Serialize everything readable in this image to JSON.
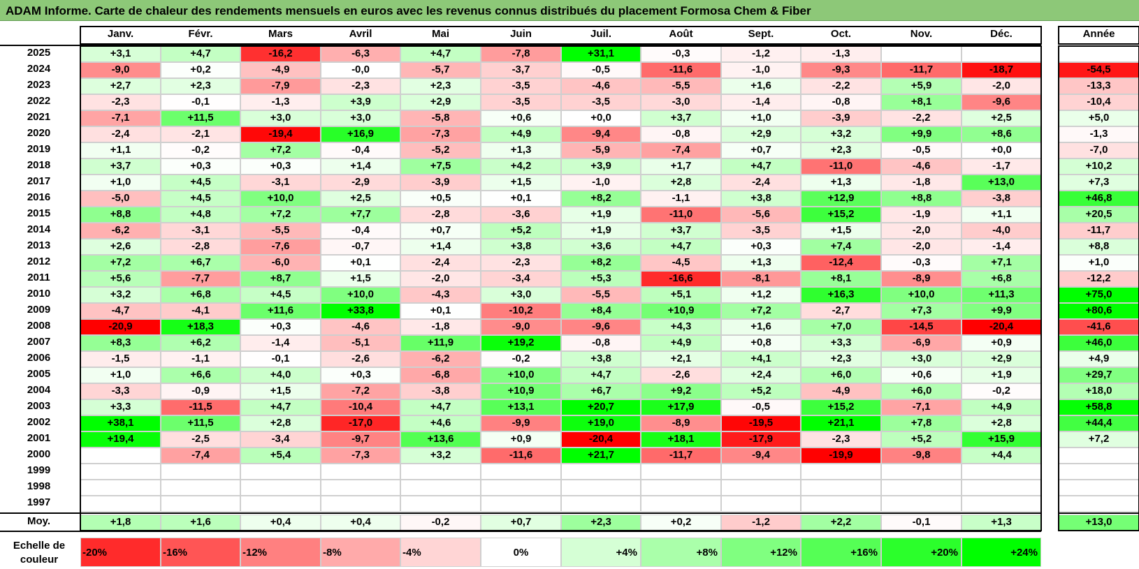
{
  "title": "ADAM Informe. Carte de chaleur des rendements mensuels en euros avec les revenus connus distribués du placement Formosa Chem & Fiber",
  "colors": {
    "title_bg": "#8dc878",
    "negative_max": "#ff0000",
    "positive_max": "#00ff00",
    "neutral": "#ffffff"
  },
  "chart_data": {
    "type": "heatmap",
    "title": "ADAM Informe. Carte de chaleur des rendements mensuels en euros avec les revenus connus distribués du placement Formosa Chem & Fiber",
    "month_headers": [
      "Janv.",
      "Févr.",
      "Mars",
      "Avril",
      "Mai",
      "Juin",
      "Juil.",
      "Août",
      "Sept.",
      "Oct.",
      "Nov.",
      "Déc."
    ],
    "year_header": "Année",
    "rows": [
      {
        "year": "2025",
        "months": [
          "+3,1",
          "+4,7",
          "-16,2",
          "-6,3",
          "+4,7",
          "-7,8",
          "+31,1",
          "-0,3",
          "-1,2",
          "-1,3",
          "",
          ""
        ],
        "annual": ""
      },
      {
        "year": "2024",
        "months": [
          "-9,0",
          "+0,2",
          "-4,9",
          "-0,0",
          "-5,7",
          "-3,7",
          "-0,5",
          "-11,6",
          "-1,0",
          "-9,3",
          "-11,7",
          "-18,7"
        ],
        "annual": "-54,5"
      },
      {
        "year": "2023",
        "months": [
          "+2,7",
          "+2,3",
          "-7,9",
          "-2,3",
          "+2,3",
          "-3,5",
          "-4,6",
          "-5,5",
          "+1,6",
          "-2,2",
          "+5,9",
          "-2,0"
        ],
        "annual": "-13,3"
      },
      {
        "year": "2022",
        "months": [
          "-2,3",
          "-0,1",
          "-1,3",
          "+3,9",
          "+2,9",
          "-3,5",
          "-3,5",
          "-3,0",
          "-1,4",
          "-0,8",
          "+8,1",
          "-9,6"
        ],
        "annual": "-10,4"
      },
      {
        "year": "2021",
        "months": [
          "-7,1",
          "+11,5",
          "+3,0",
          "+3,0",
          "-5,8",
          "+0,6",
          "+0,0",
          "+3,7",
          "+1,0",
          "-3,9",
          "-2,2",
          "+2,5"
        ],
        "annual": "+5,0"
      },
      {
        "year": "2020",
        "months": [
          "-2,4",
          "-2,1",
          "-19,4",
          "+16,9",
          "-7,3",
          "+4,9",
          "-9,4",
          "-0,8",
          "+2,9",
          "+3,2",
          "+9,9",
          "+8,6"
        ],
        "annual": "-1,3"
      },
      {
        "year": "2019",
        "months": [
          "+1,1",
          "-0,2",
          "+7,2",
          "-0,4",
          "-5,2",
          "+1,3",
          "-5,9",
          "-7,4",
          "+0,7",
          "+2,3",
          "-0,5",
          "+0,0"
        ],
        "annual": "-7,0"
      },
      {
        "year": "2018",
        "months": [
          "+3,7",
          "+0,3",
          "+0,3",
          "+1,4",
          "+7,5",
          "+4,2",
          "+3,9",
          "+1,7",
          "+4,7",
          "-11,0",
          "-4,6",
          "-1,7"
        ],
        "annual": "+10,2"
      },
      {
        "year": "2017",
        "months": [
          "+1,0",
          "+4,5",
          "-3,1",
          "-2,9",
          "-3,9",
          "+1,5",
          "-1,0",
          "+2,8",
          "-2,4",
          "+1,3",
          "-1,8",
          "+13,0"
        ],
        "annual": "+7,3"
      },
      {
        "year": "2016",
        "months": [
          "-5,0",
          "+4,5",
          "+10,0",
          "+2,5",
          "+0,5",
          "+0,1",
          "+8,2",
          "-1,1",
          "+3,8",
          "+12,9",
          "+8,8",
          "-3,8"
        ],
        "annual": "+46,8"
      },
      {
        "year": "2015",
        "months": [
          "+8,8",
          "+4,8",
          "+7,2",
          "+7,7",
          "-2,8",
          "-3,6",
          "+1,9",
          "-11,0",
          "-5,6",
          "+15,2",
          "-1,9",
          "+1,1"
        ],
        "annual": "+20,5"
      },
      {
        "year": "2014",
        "months": [
          "-6,2",
          "-3,1",
          "-5,5",
          "-0,4",
          "+0,7",
          "+5,2",
          "+1,9",
          "+3,7",
          "-3,5",
          "+1,5",
          "-2,0",
          "-4,0"
        ],
        "annual": "-11,7"
      },
      {
        "year": "2013",
        "months": [
          "+2,6",
          "-2,8",
          "-7,6",
          "-0,7",
          "+1,4",
          "+3,8",
          "+3,6",
          "+4,7",
          "+0,3",
          "+7,4",
          "-2,0",
          "-1,4"
        ],
        "annual": "+8,8"
      },
      {
        "year": "2012",
        "months": [
          "+7,2",
          "+6,7",
          "-6,0",
          "+0,1",
          "-2,4",
          "-2,3",
          "+8,2",
          "-4,5",
          "+1,3",
          "-12,4",
          "-0,3",
          "+7,1"
        ],
        "annual": "+1,0"
      },
      {
        "year": "2011",
        "months": [
          "+5,6",
          "-7,7",
          "+8,7",
          "+1,5",
          "-2,0",
          "-3,4",
          "+5,3",
          "-16,6",
          "-8,1",
          "+8,1",
          "-8,9",
          "+6,8"
        ],
        "annual": "-12,2"
      },
      {
        "year": "2010",
        "months": [
          "+3,2",
          "+6,8",
          "+4,5",
          "+10,0",
          "-4,3",
          "+3,0",
          "-5,5",
          "+5,1",
          "+1,2",
          "+16,3",
          "+10,0",
          "+11,3"
        ],
        "annual": "+75,0"
      },
      {
        "year": "2009",
        "months": [
          "-4,7",
          "-4,1",
          "+11,6",
          "+33,8",
          "+0,1",
          "-10,2",
          "+8,4",
          "+10,9",
          "+7,2",
          "-2,7",
          "+7,3",
          "+9,9"
        ],
        "annual": "+80,6"
      },
      {
        "year": "2008",
        "months": [
          "-20,9",
          "+18,3",
          "+0,3",
          "-4,6",
          "-1,8",
          "-9,0",
          "-9,6",
          "+4,3",
          "+1,6",
          "+7,0",
          "-14,5",
          "-20,4"
        ],
        "annual": "-41,6"
      },
      {
        "year": "2007",
        "months": [
          "+8,3",
          "+6,2",
          "-1,4",
          "-5,1",
          "+11,9",
          "+19,2",
          "-0,8",
          "+4,9",
          "+0,8",
          "+3,3",
          "-6,9",
          "+0,9"
        ],
        "annual": "+46,0"
      },
      {
        "year": "2006",
        "months": [
          "-1,5",
          "-1,1",
          "-0,1",
          "-2,6",
          "-6,2",
          "-0,2",
          "+3,8",
          "+2,1",
          "+4,1",
          "+2,3",
          "+3,0",
          "+2,9"
        ],
        "annual": "+4,9"
      },
      {
        "year": "2005",
        "months": [
          "+1,0",
          "+6,6",
          "+4,0",
          "+0,3",
          "-6,8",
          "+10,0",
          "+4,7",
          "-2,6",
          "+2,4",
          "+6,0",
          "+0,6",
          "+1,9"
        ],
        "annual": "+29,7"
      },
      {
        "year": "2004",
        "months": [
          "-3,3",
          "-0,9",
          "+1,5",
          "-7,2",
          "-3,8",
          "+10,9",
          "+6,7",
          "+9,2",
          "+5,2",
          "-4,9",
          "+6,0",
          "-0,2"
        ],
        "annual": "+18,0"
      },
      {
        "year": "2003",
        "months": [
          "+3,3",
          "-11,5",
          "+4,7",
          "-10,4",
          "+4,7",
          "+13,1",
          "+20,7",
          "+17,9",
          "-0,5",
          "+15,2",
          "-7,1",
          "+4,9"
        ],
        "annual": "+58,8"
      },
      {
        "year": "2002",
        "months": [
          "+38,1",
          "+11,5",
          "+2,8",
          "-17,0",
          "+4,6",
          "-9,9",
          "+19,0",
          "-8,9",
          "-19,5",
          "+21,1",
          "+7,8",
          "+2,8"
        ],
        "annual": "+44,4"
      },
      {
        "year": "2001",
        "months": [
          "+19,4",
          "-2,5",
          "-3,4",
          "-9,7",
          "+13,6",
          "+0,9",
          "-20,4",
          "+18,1",
          "-17,9",
          "-2,3",
          "+5,2",
          "+15,9"
        ],
        "annual": "+7,2"
      },
      {
        "year": "2000",
        "months": [
          "",
          "-7,4",
          "+5,4",
          "-7,3",
          "+3,2",
          "-11,6",
          "+21,7",
          "-11,7",
          "-9,4",
          "-19,9",
          "-9,8",
          "+4,4"
        ],
        "annual": ""
      },
      {
        "year": "1999",
        "months": [
          "",
          "",
          "",
          "",
          "",
          "",
          "",
          "",
          "",
          "",
          "",
          ""
        ],
        "annual": ""
      },
      {
        "year": "1998",
        "months": [
          "",
          "",
          "",
          "",
          "",
          "",
          "",
          "",
          "",
          "",
          "",
          ""
        ],
        "annual": ""
      },
      {
        "year": "1997",
        "months": [
          "",
          "",
          "",
          "",
          "",
          "",
          "",
          "",
          "",
          "",
          "",
          ""
        ],
        "annual": ""
      }
    ],
    "average": {
      "label": "Moy.",
      "months": [
        "+1,8",
        "+1,6",
        "+0,4",
        "+0,4",
        "-0,2",
        "+0,7",
        "+2,3",
        "+0,2",
        "-1,2",
        "+2,2",
        "-0,1",
        "+1,3"
      ],
      "annual": "+13,0"
    },
    "color_scale": {
      "label": "Echelle de couleur",
      "entries": [
        {
          "label": "-20%",
          "value": -20
        },
        {
          "label": "-16%",
          "value": -16
        },
        {
          "label": "-12%",
          "value": -12
        },
        {
          "label": "-8%",
          "value": -8
        },
        {
          "label": "-4%",
          "value": -4
        },
        {
          "label": "0%",
          "value": 0
        },
        {
          "label": "+4%",
          "value": 4
        },
        {
          "label": "+8%",
          "value": 8
        },
        {
          "label": "+12%",
          "value": 12
        },
        {
          "label": "+16%",
          "value": 16
        },
        {
          "label": "+20%",
          "value": 20
        },
        {
          "label": "+24%",
          "value": 24
        }
      ]
    }
  }
}
